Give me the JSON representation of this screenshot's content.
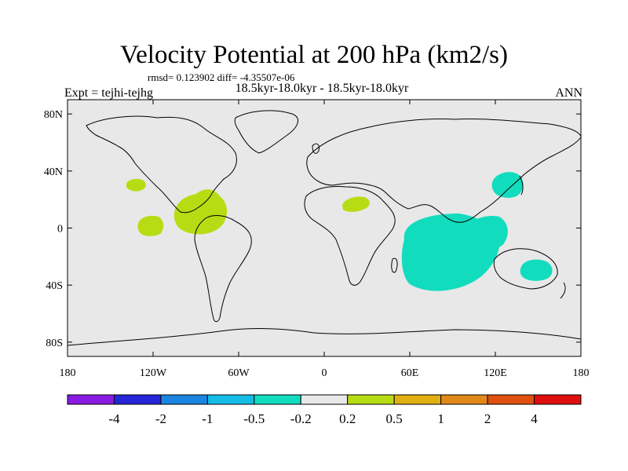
{
  "chart_data": {
    "type": "heatmap",
    "title": "Velocity Potential at 200 hPa (km2/s)",
    "stats_line": "rmsd= 0.123902 diff= -4.35507e-06",
    "subtitle": "18.5kyr-18.0kyr - 18.5kyr-18.0kyr",
    "left_string": "Expt = tejhi-tejhg",
    "right_string": "ANN",
    "x_ticks": [
      "180",
      "120W",
      "60W",
      "0",
      "60E",
      "120E",
      "180"
    ],
    "y_ticks": [
      "80N",
      "40N",
      "0",
      "40S",
      "80S"
    ],
    "xlim": [
      -180,
      180
    ],
    "ylim": [
      -90,
      90
    ],
    "colorbar": {
      "levels": [
        "-4",
        "-2",
        "-1",
        "-0.5",
        "-0.2",
        "0.2",
        "0.5",
        "1",
        "2",
        "4"
      ],
      "colors": [
        "#8a1be2",
        "#2626d9",
        "#1a85e0",
        "#14bde6",
        "#12dcbe",
        "#e8e8e8",
        "#b8dc14",
        "#e0b010",
        "#e08818",
        "#e05010",
        "#e00f0f"
      ]
    },
    "regions": [
      {
        "name": "Indian Ocean negative anomaly",
        "level": "-0.5 to -0.2",
        "color": "#12dcbe",
        "center_lon": 75,
        "center_lat": -15
      },
      {
        "name": "Maritime continent negative anomaly",
        "level": "-0.5 to -0.2",
        "color": "#12dcbe",
        "center_lon": 110,
        "center_lat": 0
      },
      {
        "name": "East Asia negative anomaly",
        "level": "-0.5 to -0.2",
        "color": "#12dcbe",
        "center_lon": 130,
        "center_lat": 33
      },
      {
        "name": "Australia negative anomaly",
        "level": "-0.5 to -0.2",
        "color": "#12dcbe",
        "center_lon": 150,
        "center_lat": -28
      },
      {
        "name": "Caribbean positive anomaly",
        "level": "0.2 to 0.5",
        "color": "#b8dc14",
        "center_lon": -85,
        "center_lat": 10
      },
      {
        "name": "Eastern Pacific positive anomaly",
        "level": "0.2 to 0.5",
        "color": "#b8dc14",
        "center_lon": -118,
        "center_lat": 5
      },
      {
        "name": "Subtropical North Pacific positive anomaly",
        "level": "0.2 to 0.5",
        "color": "#b8dc14",
        "center_lon": -127,
        "center_lat": 35
      },
      {
        "name": "North Africa positive anomaly",
        "level": "0.2 to 0.5",
        "color": "#b8dc14",
        "center_lon": 25,
        "center_lat": 20
      }
    ]
  }
}
